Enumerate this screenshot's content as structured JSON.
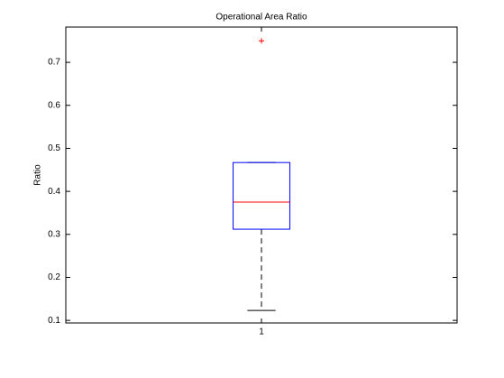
{
  "chart_data": {
    "type": "box",
    "title": "Operational Area Ratio",
    "ylabel": "Ratio",
    "categories": [
      "1"
    ],
    "boxes": [
      {
        "whisker_low": 0.123,
        "q1": 0.312,
        "median": 0.375,
        "q3": 0.467,
        "whisker_high": 0.467,
        "outliers": [
          0.75
        ]
      }
    ],
    "box_color": "#0000ff",
    "median_color": "#ff0000",
    "whisker_color": "#000000",
    "outlier_color": "#ff0000",
    "ylim": [
      0.094,
      0.782
    ],
    "yticks": [
      0.1,
      0.2,
      0.3,
      0.4,
      0.5,
      0.6,
      0.7
    ],
    "grid": false
  }
}
